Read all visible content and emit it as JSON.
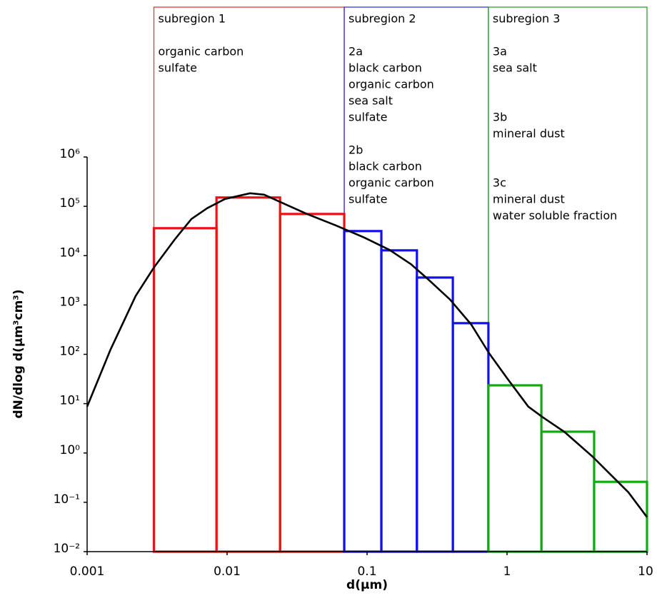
{
  "chart_data": {
    "type": "histogram",
    "xlabel": "d(µm)",
    "ylabel": "dN/dlog d(µm³cm³)",
    "xscale": "log",
    "yscale": "log",
    "xlim": [
      0.001,
      10
    ],
    "ylim": [
      0.01,
      1000000
    ],
    "xticks": [
      0.001,
      0.01,
      0.1,
      1,
      10
    ],
    "yticks": [
      {
        "value": 0.01,
        "label": "10⁻²"
      },
      {
        "value": 0.1,
        "label": "10⁻¹"
      },
      {
        "value": 1,
        "label": "10⁰"
      },
      {
        "value": 10,
        "label": "10¹"
      },
      {
        "value": 100,
        "label": "10²"
      },
      {
        "value": 1000,
        "label": "10³"
      },
      {
        "value": 10000,
        "label": "10⁴"
      },
      {
        "value": 100000,
        "label": "10⁵"
      },
      {
        "value": 1000000,
        "label": "10⁶"
      }
    ],
    "series": [
      {
        "color": "#ee1111",
        "bins": [
          0.003,
          0.0084,
          0.0239,
          0.0687
        ],
        "values": [
          36000,
          151000,
          70000
        ]
      },
      {
        "color": "#1111ee",
        "bins": [
          0.0687,
          0.1265,
          0.227,
          0.41,
          0.736
        ],
        "values": [
          31500,
          12800,
          3600,
          428
        ]
      },
      {
        "color": "#11aa11",
        "bins": [
          0.736,
          1.76,
          4.19,
          10
        ],
        "values": [
          23.5,
          2.7,
          0.26
        ]
      }
    ],
    "curve": {
      "color": "#000000",
      "x": [
        0.001,
        0.00147,
        0.00222,
        0.003,
        0.00425,
        0.00556,
        0.0072,
        0.00967,
        0.0146,
        0.0184,
        0.0239,
        0.0372,
        0.0597,
        0.0955,
        0.144,
        0.205,
        0.275,
        0.391,
        0.556,
        0.745,
        1.0,
        1.42,
        1.8,
        2.56,
        4.09,
        5.18,
        7.36,
        10
      ],
      "y": [
        8.7,
        125,
        1520,
        5750,
        21800,
        55400,
        91400,
        141000,
        184000,
        172000,
        123000,
        70000,
        41100,
        23300,
        13200,
        6790,
        3260,
        1290,
        400,
        105,
        32.9,
        8.7,
        5.3,
        2.7,
        0.84,
        0.43,
        0.16,
        0.05
      ]
    },
    "regions": [
      {
        "label": "subregion 1",
        "color": "#ee3333",
        "xlim": [
          0.003,
          0.0687
        ],
        "groups": [
          {
            "items": [
              "organic carbon",
              "sulfate"
            ]
          }
        ]
      },
      {
        "label": "subregion 2",
        "color": "#3333ee",
        "xlim": [
          0.0687,
          0.736
        ],
        "groups": [
          {
            "label": "2a",
            "items": [
              "black carbon",
              "organic carbon",
              "sea salt",
              "sulfate"
            ]
          },
          {
            "label": "2b",
            "items": [
              "black carbon",
              "organic carbon",
              "sulfate"
            ]
          }
        ]
      },
      {
        "label": "subregion 3",
        "color": "#22aa22",
        "xlim": [
          0.736,
          10
        ],
        "groups": [
          {
            "label": "3a",
            "items": [
              "sea salt"
            ]
          },
          {
            "label": "3b",
            "items": [
              "mineral dust"
            ]
          },
          {
            "label": "3c",
            "items": [
              "mineral dust",
              "water soluble fraction"
            ]
          }
        ]
      }
    ]
  }
}
